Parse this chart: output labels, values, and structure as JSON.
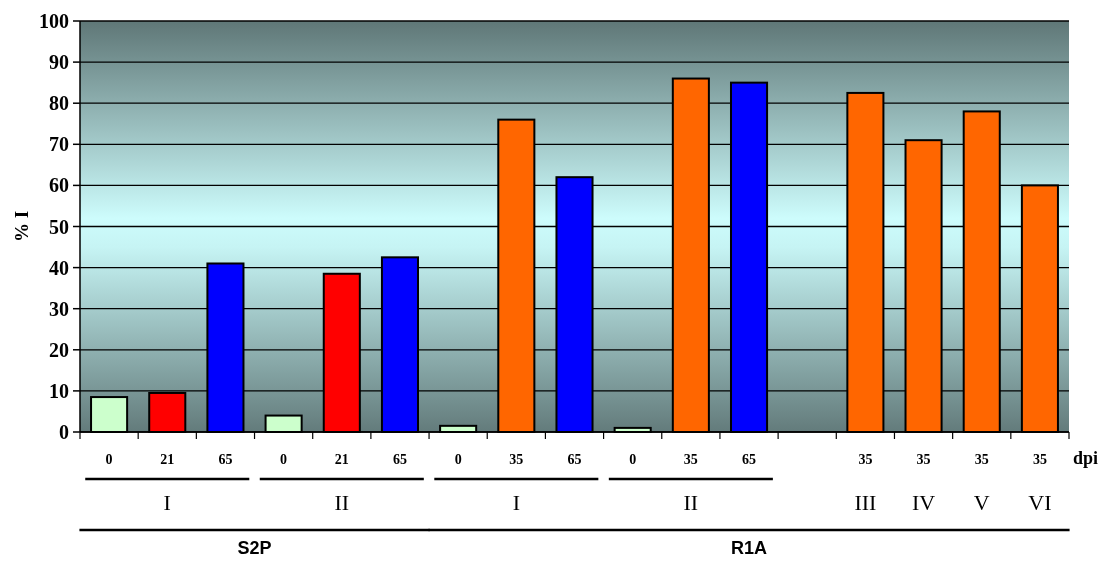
{
  "chart_data": {
    "type": "bar",
    "ylabel": "% I",
    "xlabel": "dpi",
    "categories": [
      "0",
      "21",
      "65",
      "0",
      "21",
      "65",
      "0",
      "35",
      "65",
      "0",
      "35",
      "65",
      null,
      "35",
      "35",
      "35",
      "35"
    ],
    "values": [
      8.5,
      9.5,
      41,
      4,
      38.5,
      42.5,
      1.5,
      76,
      62,
      1,
      86,
      85,
      null,
      82.5,
      71,
      78,
      60
    ],
    "colors": [
      "#ccffcc",
      "#ff0000",
      "#0000ff",
      "#ccffcc",
      "#ff0000",
      "#0000ff",
      "#ccffcc",
      "#ff6600",
      "#0000ff",
      "#ccffcc",
      "#ff6600",
      "#0000ff",
      null,
      "#ff6600",
      "#ff6600",
      "#ff6600",
      "#ff6600"
    ],
    "ylim": [
      0,
      100
    ],
    "yticks": [
      0,
      10,
      20,
      30,
      40,
      50,
      60,
      70,
      80,
      90,
      100
    ],
    "grid": "y",
    "annotations": [
      "I",
      "II",
      "I",
      "II",
      "III",
      "IV",
      "V",
      "VI",
      "S2P",
      "R1A"
    ]
  }
}
